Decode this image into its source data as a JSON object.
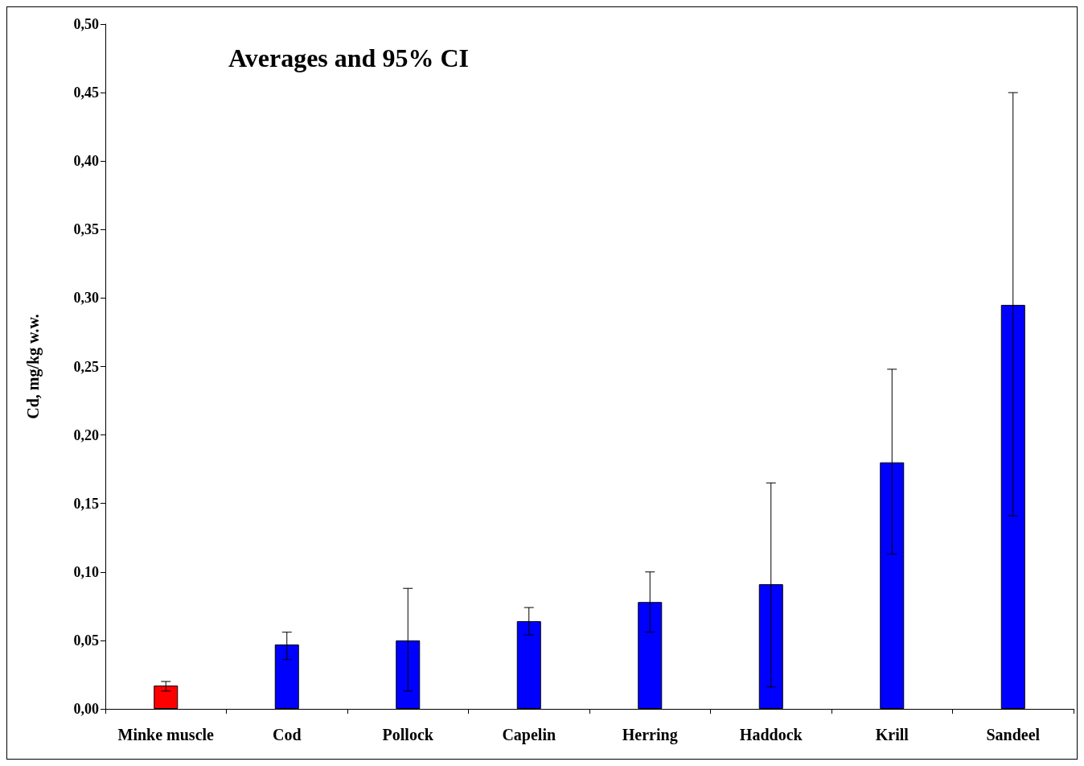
{
  "chart_data": {
    "type": "bar",
    "title": "Averages and 95% CI",
    "ylabel": "Cd, mg/kg w.w.",
    "categories": [
      "Minke muscle",
      "Cod",
      "Pollock",
      "Capelin",
      "Herring",
      "Haddock",
      "Krill",
      "Sandeel"
    ],
    "values": [
      0.017,
      0.047,
      0.05,
      0.064,
      0.078,
      0.091,
      0.18,
      0.295
    ],
    "colors": [
      "#ff0000",
      "#0000ff",
      "#0000ff",
      "#0000ff",
      "#0000ff",
      "#0000ff",
      "#0000ff",
      "#0000ff"
    ],
    "errors": [
      [
        0.013,
        0.02
      ],
      [
        0.036,
        0.056
      ],
      [
        0.013,
        0.088
      ],
      [
        0.054,
        0.074
      ],
      [
        0.056,
        0.1
      ],
      [
        0.016,
        0.165
      ],
      [
        0.113,
        0.248
      ],
      [
        0.141,
        0.45
      ]
    ],
    "ylim": [
      0,
      0.5
    ],
    "yticks": [
      {
        "value": 0,
        "label": "0,00"
      },
      {
        "value": 0.05,
        "label": "0,05"
      },
      {
        "value": 0.1,
        "label": "0,10"
      },
      {
        "value": 0.15,
        "label": "0,15"
      },
      {
        "value": 0.2,
        "label": "0,20"
      },
      {
        "value": 0.25,
        "label": "0,25"
      },
      {
        "value": 0.3,
        "label": "0,30"
      },
      {
        "value": 0.35,
        "label": "0,35"
      },
      {
        "value": 0.4,
        "label": "0,40"
      },
      {
        "value": 0.45,
        "label": "0,45"
      },
      {
        "value": 0.5,
        "label": "0,50"
      }
    ],
    "grid": false
  }
}
